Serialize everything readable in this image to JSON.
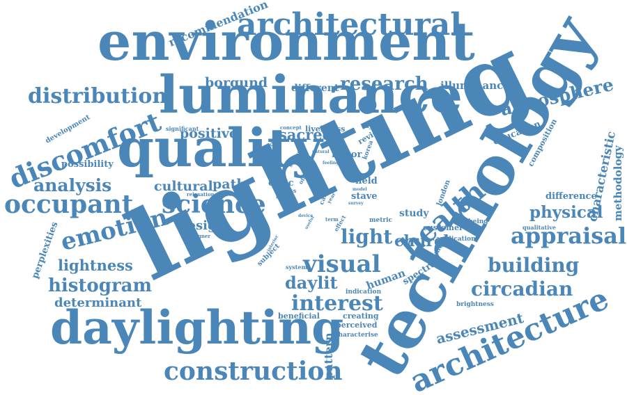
{
  "cloud": {
    "color": "#4a86b8",
    "words": [
      "lighting",
      "technology",
      "environment",
      "luminance",
      "quality",
      "daylighting",
      "architectural",
      "architecture",
      "construction",
      "science",
      "occupant",
      "discomfort",
      "emotion",
      "distribution",
      "atmosphere",
      "appraisal",
      "visual",
      "health",
      "building",
      "circadian",
      "interest",
      "histogram",
      "lightness",
      "analysis",
      "research",
      "determinant",
      "daylit",
      "physical",
      "church",
      "light",
      "assessment",
      "sacred",
      "positive",
      "cultural",
      "borgund",
      "different",
      "illuminance",
      "recommendation",
      "education",
      "composition",
      "characteristic",
      "methodology",
      "difference",
      "design",
      "path",
      "possibility",
      "perplexities",
      "development",
      "significant",
      "concept",
      "liveliness",
      "daylight",
      "current",
      "review",
      "creating",
      "perceived",
      "beneficial",
      "characterise",
      "indication",
      "brightness",
      "application",
      "qualitative",
      "wellbeing",
      "customer",
      "promote",
      "spectral",
      "human",
      "pattern",
      "study",
      "london",
      "stave",
      "field",
      "factor",
      "korea",
      "optic",
      "cross",
      "office",
      "relaxation",
      "result",
      "setting",
      "natural",
      "feeling",
      "article",
      "subject",
      "designer",
      "system",
      "interior",
      "device",
      "useful",
      "term",
      "effect",
      "metric",
      "model",
      "survey",
      "cafe",
      "year",
      "paper",
      "role"
    ]
  }
}
